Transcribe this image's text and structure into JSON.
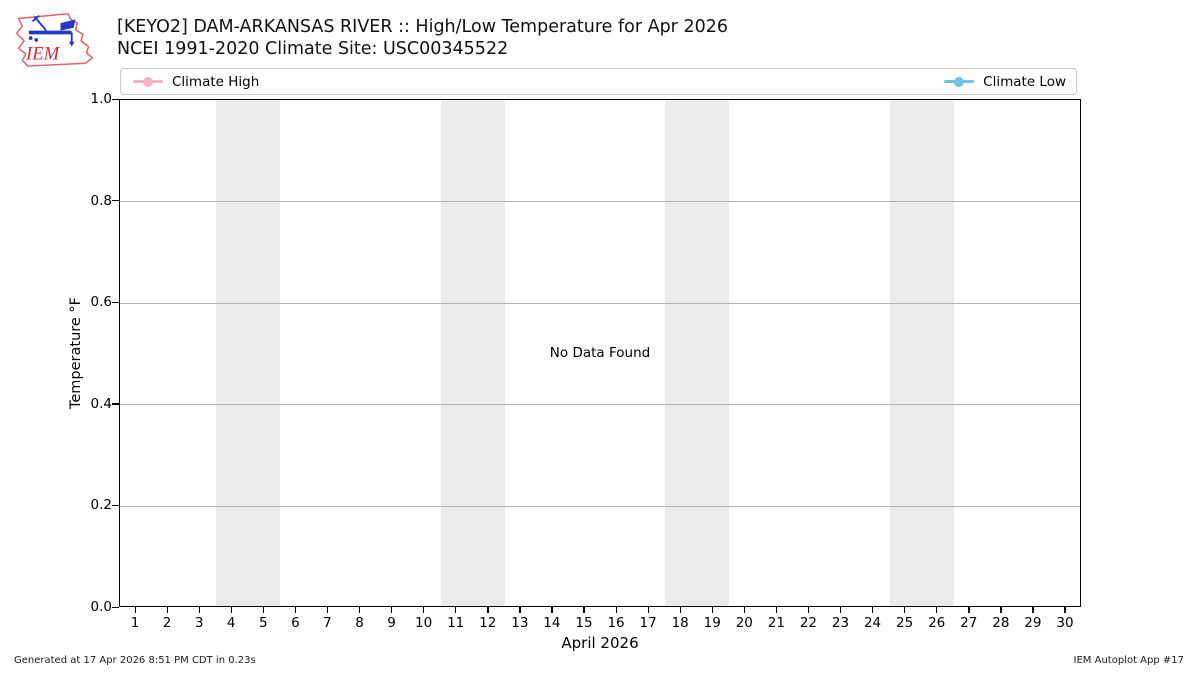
{
  "header": {
    "title": "[KEYO2] DAM-ARKANSAS RIVER :: High/Low Temperature for Apr 2026",
    "subtitle": "NCEI 1991-2020 Climate Site: USC00345522",
    "logo_text": "IEM"
  },
  "legend": {
    "position": "top-full-width",
    "items": [
      {
        "label": "Climate High",
        "color": "#f7b3c1"
      },
      {
        "label": "Climate Low",
        "color": "#6fc3e6"
      }
    ]
  },
  "chart_data": {
    "type": "line",
    "title": "[KEYO2] DAM-ARKANSAS RIVER :: High/Low Temperature for Apr 2026",
    "subtitle": "NCEI 1991-2020 Climate Site: USC00345522",
    "xlabel": "April 2026",
    "ylabel": "Temperature °F",
    "no_data_text": "No Data Found",
    "grid": true,
    "xlim": [
      0.5,
      30.5
    ],
    "ylim": [
      0.0,
      1.0
    ],
    "x_ticks": [
      1,
      2,
      3,
      4,
      5,
      6,
      7,
      8,
      9,
      10,
      11,
      12,
      13,
      14,
      15,
      16,
      17,
      18,
      19,
      20,
      21,
      22,
      23,
      24,
      25,
      26,
      27,
      28,
      29,
      30
    ],
    "y_ticks": [
      "0.0",
      "0.2",
      "0.4",
      "0.6",
      "0.8",
      "1.0"
    ],
    "series": [
      {
        "name": "Climate High",
        "color": "#f7b3c1",
        "x": [],
        "values": []
      },
      {
        "name": "Climate Low",
        "color": "#6fc3e6",
        "x": [],
        "values": []
      }
    ],
    "weekend_bands": [
      [
        3.5,
        5.5
      ],
      [
        10.5,
        12.5
      ],
      [
        17.5,
        19.5
      ],
      [
        24.5,
        26.5
      ]
    ],
    "band_color": "#ececec",
    "grid_color": "#b2b2b2"
  },
  "footer": {
    "left": "Generated at 17 Apr 2026 8:51 PM CDT in 0.23s",
    "right": "IEM Autoplot App #17"
  }
}
